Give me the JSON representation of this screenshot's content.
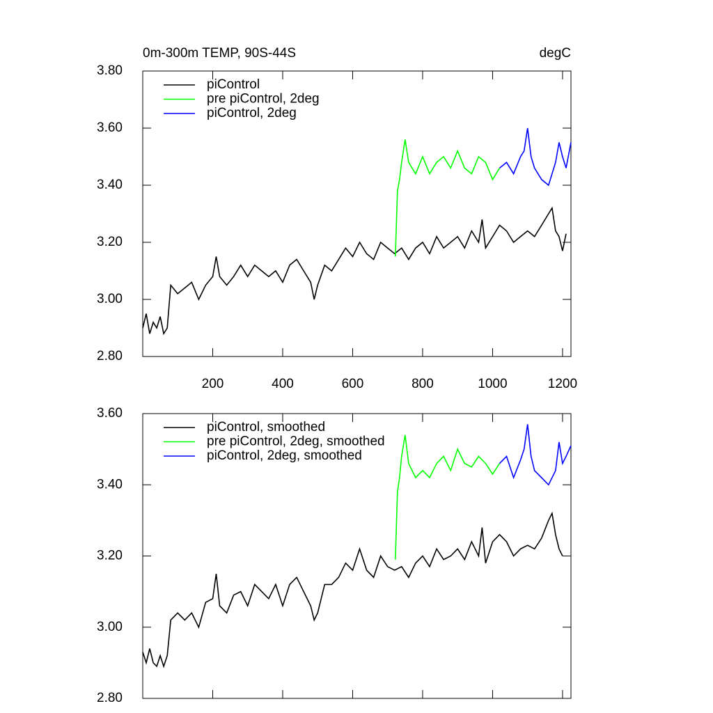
{
  "chart_data": [
    {
      "type": "line",
      "title": "0m-300m TEMP, 90S-44S",
      "units": "degC",
      "xlim": [
        0,
        1224
      ],
      "xticks": [
        200,
        400,
        600,
        800,
        1000,
        1200
      ],
      "show_x_tick_labels": true,
      "ylim": [
        2.8,
        3.8
      ],
      "yticks": [
        {
          "value": 2.8,
          "label": "2.80"
        },
        {
          "value": 3.0,
          "label": "3.00"
        },
        {
          "value": 3.2,
          "label": "3.20"
        },
        {
          "value": 3.4,
          "label": "3.40"
        },
        {
          "value": 3.6,
          "label": "3.60"
        },
        {
          "value": 3.8,
          "label": "3.80"
        }
      ],
      "legend": "top-left",
      "series": [
        {
          "name": "piControl",
          "color": "#000000",
          "x": [
            0,
            10,
            20,
            30,
            40,
            50,
            60,
            70,
            80,
            100,
            120,
            140,
            160,
            180,
            200,
            210,
            220,
            240,
            260,
            280,
            300,
            320,
            340,
            360,
            380,
            400,
            420,
            440,
            460,
            480,
            490,
            500,
            520,
            540,
            560,
            580,
            600,
            620,
            640,
            660,
            680,
            700,
            720,
            740,
            760,
            780,
            800,
            820,
            840,
            860,
            880,
            900,
            920,
            940,
            960,
            970,
            980,
            1000,
            1020,
            1040,
            1060,
            1080,
            1100,
            1120,
            1140,
            1160,
            1170,
            1180,
            1190,
            1200,
            1210
          ],
          "values": [
            2.9,
            2.95,
            2.88,
            2.92,
            2.9,
            2.94,
            2.88,
            2.9,
            3.05,
            3.02,
            3.04,
            3.06,
            3.0,
            3.05,
            3.08,
            3.15,
            3.08,
            3.05,
            3.08,
            3.12,
            3.08,
            3.12,
            3.1,
            3.08,
            3.1,
            3.06,
            3.12,
            3.14,
            3.1,
            3.06,
            3.0,
            3.05,
            3.12,
            3.1,
            3.14,
            3.18,
            3.15,
            3.2,
            3.16,
            3.14,
            3.2,
            3.18,
            3.16,
            3.18,
            3.14,
            3.18,
            3.2,
            3.16,
            3.22,
            3.18,
            3.2,
            3.22,
            3.18,
            3.24,
            3.2,
            3.28,
            3.18,
            3.22,
            3.26,
            3.24,
            3.2,
            3.22,
            3.24,
            3.22,
            3.26,
            3.3,
            3.32,
            3.24,
            3.22,
            3.17,
            3.23
          ]
        },
        {
          "name": "pre piControl, 2deg",
          "color": "#00ff00",
          "x": [
            722,
            728,
            734,
            740,
            750,
            760,
            780,
            800,
            820,
            840,
            860,
            880,
            900,
            920,
            940,
            960,
            980,
            1000,
            1020
          ],
          "values": [
            3.15,
            3.38,
            3.42,
            3.48,
            3.56,
            3.48,
            3.44,
            3.5,
            3.44,
            3.48,
            3.5,
            3.46,
            3.52,
            3.46,
            3.44,
            3.5,
            3.48,
            3.42,
            3.46
          ]
        },
        {
          "name": "piControl, 2deg",
          "color": "#0000ff",
          "x": [
            1020,
            1040,
            1060,
            1080,
            1090,
            1100,
            1110,
            1120,
            1140,
            1160,
            1180,
            1190,
            1200,
            1210,
            1224
          ],
          "values": [
            3.46,
            3.48,
            3.44,
            3.5,
            3.52,
            3.6,
            3.5,
            3.46,
            3.42,
            3.4,
            3.48,
            3.55,
            3.5,
            3.46,
            3.55
          ]
        }
      ]
    },
    {
      "type": "line",
      "xlim": [
        0,
        1224
      ],
      "xticks": [
        200,
        400,
        600,
        800,
        1000,
        1200
      ],
      "show_x_tick_labels": false,
      "ylim": [
        2.8,
        3.6
      ],
      "yticks": [
        {
          "value": 2.8,
          "label": "2.80"
        },
        {
          "value": 3.0,
          "label": "3.00"
        },
        {
          "value": 3.2,
          "label": "3.20"
        },
        {
          "value": 3.4,
          "label": "3.40"
        },
        {
          "value": 3.6,
          "label": "3.60"
        }
      ],
      "legend": "top-left",
      "series": [
        {
          "name": "piControl, smoothed",
          "color": "#000000",
          "x": [
            0,
            10,
            20,
            30,
            40,
            50,
            60,
            70,
            80,
            100,
            120,
            140,
            160,
            180,
            200,
            210,
            220,
            240,
            260,
            280,
            300,
            320,
            340,
            360,
            380,
            400,
            420,
            440,
            460,
            480,
            490,
            500,
            520,
            540,
            560,
            580,
            600,
            620,
            640,
            660,
            680,
            700,
            720,
            740,
            760,
            780,
            800,
            820,
            840,
            860,
            880,
            900,
            920,
            940,
            960,
            970,
            980,
            1000,
            1020,
            1040,
            1060,
            1080,
            1100,
            1120,
            1140,
            1160,
            1170,
            1180,
            1190,
            1200
          ],
          "values": [
            2.93,
            2.9,
            2.94,
            2.9,
            2.89,
            2.92,
            2.89,
            2.92,
            3.02,
            3.04,
            3.02,
            3.04,
            3.0,
            3.07,
            3.08,
            3.15,
            3.06,
            3.04,
            3.09,
            3.1,
            3.06,
            3.12,
            3.1,
            3.08,
            3.12,
            3.06,
            3.12,
            3.14,
            3.1,
            3.06,
            3.02,
            3.04,
            3.12,
            3.12,
            3.14,
            3.18,
            3.16,
            3.22,
            3.16,
            3.14,
            3.2,
            3.17,
            3.16,
            3.17,
            3.14,
            3.18,
            3.2,
            3.17,
            3.22,
            3.19,
            3.2,
            3.22,
            3.19,
            3.24,
            3.2,
            3.28,
            3.18,
            3.24,
            3.26,
            3.24,
            3.2,
            3.22,
            3.23,
            3.22,
            3.25,
            3.3,
            3.32,
            3.26,
            3.22,
            3.2
          ]
        },
        {
          "name": "pre piControl, 2deg, smoothed",
          "color": "#00ff00",
          "x": [
            722,
            728,
            734,
            740,
            750,
            760,
            780,
            800,
            820,
            840,
            860,
            880,
            900,
            920,
            940,
            960,
            980,
            1000,
            1020
          ],
          "values": [
            3.19,
            3.38,
            3.42,
            3.48,
            3.54,
            3.46,
            3.42,
            3.44,
            3.42,
            3.46,
            3.48,
            3.44,
            3.5,
            3.46,
            3.45,
            3.48,
            3.46,
            3.43,
            3.46
          ]
        },
        {
          "name": "piControl, 2deg, smoothed",
          "color": "#0000ff",
          "x": [
            1020,
            1040,
            1060,
            1080,
            1090,
            1100,
            1110,
            1120,
            1140,
            1160,
            1180,
            1190,
            1200,
            1210,
            1224
          ],
          "values": [
            3.46,
            3.48,
            3.42,
            3.47,
            3.5,
            3.57,
            3.48,
            3.44,
            3.42,
            3.4,
            3.44,
            3.52,
            3.46,
            3.48,
            3.51
          ]
        }
      ]
    }
  ]
}
